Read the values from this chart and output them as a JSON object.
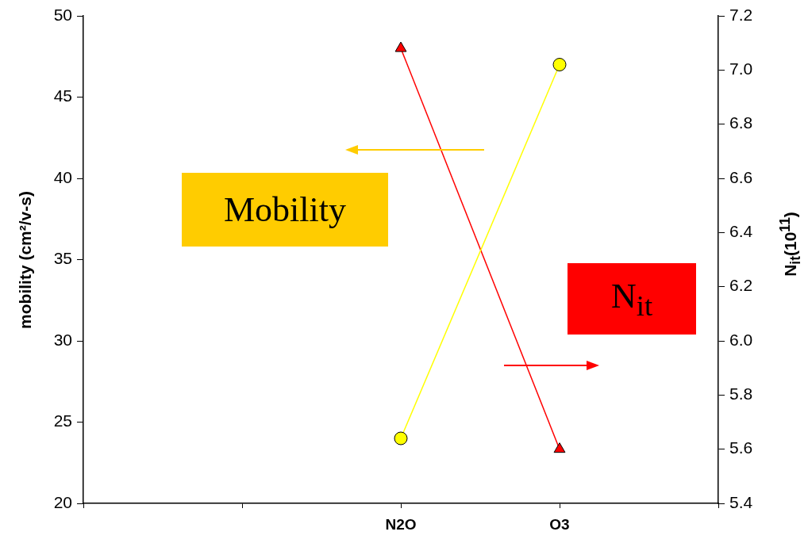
{
  "chart_data": {
    "type": "line",
    "categories": [
      null,
      null,
      "N2O",
      "O3",
      null
    ],
    "ylabel": "mobility (cm²/v-s)",
    "y2label": "N$_{it}$(10$^{11}$)",
    "ylim": [
      20,
      50
    ],
    "yticks": [
      20,
      25,
      30,
      35,
      40,
      45,
      50
    ],
    "y2lim": [
      5.4,
      7.2
    ],
    "y2ticks": [
      {
        "value": 5.4,
        "label": "5.4"
      },
      {
        "value": 5.6,
        "label": "5.6"
      },
      {
        "value": 5.8,
        "label": "5.8"
      },
      {
        "value": 6.0,
        "label": "6.0"
      },
      {
        "value": 6.2,
        "label": "6.2"
      },
      {
        "value": 6.4,
        "label": "6.4"
      },
      {
        "value": 6.6,
        "label": "6.6"
      },
      {
        "value": 6.8,
        "label": "6.8"
      },
      {
        "value": 7.0,
        "label": "7.0"
      },
      {
        "value": 7.2,
        "label": "7.2"
      }
    ],
    "grid": false,
    "series": [
      {
        "name": "Mobility",
        "color": "#ffff00",
        "marker": "circle",
        "values": [
          null,
          null,
          24,
          47,
          null
        ]
      },
      {
        "name": "N$_{it}$",
        "color": "#ff0000",
        "marker": "triangle",
        "axis": "y2",
        "values": [
          null,
          null,
          7.08,
          5.6,
          null
        ]
      }
    ]
  }
}
